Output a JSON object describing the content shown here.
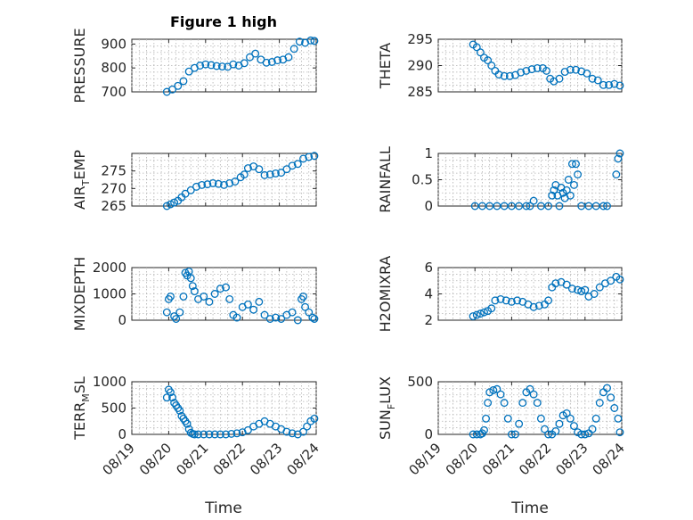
{
  "figure": {
    "title": "Figure 1 high",
    "marker_color": "#0072BD",
    "x_tick_labels": [
      "08/19",
      "08/20",
      "08/21",
      "08/22",
      "08/23",
      "08/24"
    ],
    "xlabel": "Time"
  },
  "chart_data": [
    {
      "type": "scatter",
      "ylabel": "PRESSURE",
      "title": "Figure 1 high",
      "xlim": [
        0,
        5
      ],
      "ylim": [
        700,
        920
      ],
      "yticks": [
        700,
        800,
        900
      ],
      "x": [
        0.95,
        1.1,
        1.25,
        1.4,
        1.55,
        1.7,
        1.85,
        2.0,
        2.15,
        2.3,
        2.45,
        2.6,
        2.75,
        2.9,
        3.05,
        3.2,
        3.35,
        3.5,
        3.65,
        3.8,
        3.95,
        4.1,
        4.25,
        4.4,
        4.55,
        4.7,
        4.85,
        4.95
      ],
      "y": [
        700,
        710,
        725,
        745,
        785,
        800,
        810,
        815,
        812,
        808,
        806,
        805,
        815,
        810,
        820,
        845,
        860,
        835,
        822,
        825,
        832,
        835,
        845,
        880,
        910,
        905,
        915,
        913
      ]
    },
    {
      "type": "scatter",
      "ylabel": "THETA",
      "xlim": [
        0,
        5
      ],
      "ylim": [
        285,
        295
      ],
      "yticks": [
        285,
        290,
        295
      ],
      "x": [
        0.95,
        1.05,
        1.15,
        1.25,
        1.35,
        1.45,
        1.55,
        1.65,
        1.8,
        1.95,
        2.1,
        2.25,
        2.4,
        2.55,
        2.7,
        2.85,
        2.95,
        3.05,
        3.15,
        3.3,
        3.45,
        3.6,
        3.75,
        3.9,
        4.05,
        4.2,
        4.35,
        4.5,
        4.65,
        4.8,
        4.95
      ],
      "y": [
        294,
        293.5,
        292.5,
        291.5,
        291,
        290,
        289,
        288.3,
        288,
        288,
        288.2,
        288.7,
        289,
        289.3,
        289.5,
        289.5,
        289,
        287.5,
        287,
        287.5,
        288.8,
        289.2,
        289.2,
        288.9,
        288.5,
        287.5,
        287.2,
        286.3,
        286.3,
        286.5,
        286.2
      ]
    },
    {
      "type": "scatter",
      "ylabel": "AIR_TEMP",
      "xlim": [
        0,
        5
      ],
      "ylim": [
        265,
        280
      ],
      "yticks": [
        265,
        270,
        275
      ],
      "x": [
        0.95,
        1.05,
        1.15,
        1.25,
        1.35,
        1.45,
        1.6,
        1.75,
        1.9,
        2.05,
        2.2,
        2.35,
        2.5,
        2.65,
        2.8,
        2.95,
        3.05,
        3.15,
        3.3,
        3.45,
        3.6,
        3.75,
        3.9,
        4.05,
        4.2,
        4.35,
        4.5,
        4.65,
        4.8,
        4.95
      ],
      "y": [
        265,
        265.5,
        266,
        266.5,
        267.5,
        268.5,
        269.5,
        270.5,
        271,
        271.2,
        271.5,
        271.3,
        271,
        271.5,
        272,
        273.2,
        274,
        275.8,
        276.3,
        275.5,
        273.8,
        274,
        274.3,
        274.5,
        275.5,
        276.5,
        277,
        278.5,
        279,
        279.3
      ]
    },
    {
      "type": "scatter",
      "ylabel": "RAINFALL",
      "xlim": [
        0,
        5
      ],
      "ylim": [
        0,
        1
      ],
      "yticks": [
        0,
        0.5,
        1
      ],
      "yticklabels": [
        "0",
        "0.5",
        "1"
      ],
      "x": [
        1.0,
        1.2,
        1.4,
        1.6,
        1.8,
        2.0,
        2.2,
        2.4,
        2.5,
        2.6,
        2.8,
        3.0,
        3.1,
        3.15,
        3.2,
        3.25,
        3.3,
        3.35,
        3.4,
        3.45,
        3.5,
        3.55,
        3.6,
        3.65,
        3.7,
        3.75,
        3.8,
        3.9,
        4.1,
        4.3,
        4.5,
        4.6,
        4.85,
        4.9,
        4.95
      ],
      "y": [
        0,
        0,
        0,
        0,
        0,
        0,
        0,
        0,
        0,
        0.1,
        0,
        0,
        0.2,
        0.3,
        0.4,
        0.2,
        0,
        0.35,
        0.25,
        0.15,
        0.3,
        0.5,
        0.2,
        0.8,
        0.4,
        0.8,
        0.6,
        0,
        0,
        0,
        0,
        0,
        0.6,
        0.9,
        1.0
      ]
    },
    {
      "type": "scatter",
      "ylabel": "MIXDEPTH",
      "xlim": [
        0,
        5
      ],
      "ylim": [
        0,
        2000
      ],
      "yticks": [
        0,
        1000,
        2000
      ],
      "x": [
        0.95,
        1.0,
        1.05,
        1.15,
        1.2,
        1.3,
        1.4,
        1.45,
        1.5,
        1.55,
        1.6,
        1.65,
        1.7,
        1.8,
        1.95,
        2.1,
        2.25,
        2.4,
        2.55,
        2.65,
        2.75,
        2.85,
        3.0,
        3.15,
        3.3,
        3.45,
        3.6,
        3.75,
        3.9,
        4.05,
        4.2,
        4.35,
        4.5,
        4.6,
        4.65,
        4.7,
        4.8,
        4.9,
        4.95
      ],
      "y": [
        300,
        800,
        900,
        150,
        50,
        300,
        900,
        1800,
        1700,
        1850,
        1600,
        1300,
        1100,
        800,
        900,
        700,
        1000,
        1200,
        1250,
        800,
        200,
        100,
        500,
        600,
        400,
        700,
        200,
        50,
        100,
        50,
        200,
        300,
        0,
        800,
        900,
        500,
        300,
        100,
        50
      ]
    },
    {
      "type": "scatter",
      "ylabel": "H2OMIXRA",
      "xlim": [
        0,
        5
      ],
      "ylim": [
        2,
        6
      ],
      "yticks": [
        2,
        4,
        6
      ],
      "x": [
        0.95,
        1.05,
        1.15,
        1.25,
        1.35,
        1.45,
        1.55,
        1.7,
        1.85,
        2.0,
        2.15,
        2.3,
        2.45,
        2.6,
        2.75,
        2.9,
        3.0,
        3.1,
        3.2,
        3.35,
        3.5,
        3.65,
        3.8,
        3.9,
        4.0,
        4.1,
        4.25,
        4.4,
        4.55,
        4.7,
        4.85,
        4.95
      ],
      "y": [
        2.3,
        2.4,
        2.5,
        2.6,
        2.7,
        2.9,
        3.5,
        3.6,
        3.5,
        3.4,
        3.5,
        3.4,
        3.2,
        3.0,
        3.1,
        3.2,
        3.5,
        4.5,
        4.8,
        4.9,
        4.7,
        4.4,
        4.3,
        4.2,
        4.3,
        3.8,
        4.0,
        4.5,
        4.8,
        5.0,
        5.3,
        5.1
      ]
    },
    {
      "type": "scatter",
      "ylabel": "TERR_MSL",
      "xlim": [
        0,
        5
      ],
      "ylim": [
        0,
        1000
      ],
      "yticks": [
        0,
        500,
        1000
      ],
      "x": [
        0.95,
        1.0,
        1.05,
        1.1,
        1.15,
        1.2,
        1.25,
        1.3,
        1.35,
        1.4,
        1.45,
        1.5,
        1.55,
        1.6,
        1.65,
        1.7,
        1.8,
        1.95,
        2.1,
        2.25,
        2.4,
        2.55,
        2.7,
        2.85,
        3.0,
        3.15,
        3.3,
        3.45,
        3.6,
        3.75,
        3.9,
        4.05,
        4.2,
        4.35,
        4.5,
        4.65,
        4.75,
        4.85,
        4.95
      ],
      "y": [
        700,
        850,
        800,
        700,
        600,
        550,
        500,
        450,
        350,
        300,
        250,
        200,
        100,
        30,
        10,
        0,
        0,
        0,
        0,
        0,
        0,
        0,
        10,
        20,
        40,
        80,
        150,
        200,
        250,
        200,
        150,
        100,
        50,
        20,
        0,
        50,
        150,
        250,
        300
      ]
    },
    {
      "type": "scatter",
      "ylabel": "SUN_FLUX",
      "xlim": [
        0,
        5
      ],
      "ylim": [
        0,
        500
      ],
      "yticks": [
        0,
        500
      ],
      "x": [
        0.95,
        1.05,
        1.15,
        1.2,
        1.25,
        1.3,
        1.35,
        1.4,
        1.5,
        1.6,
        1.7,
        1.8,
        1.9,
        2.0,
        2.1,
        2.2,
        2.3,
        2.4,
        2.5,
        2.6,
        2.7,
        2.8,
        2.9,
        3.0,
        3.1,
        3.2,
        3.3,
        3.4,
        3.5,
        3.6,
        3.7,
        3.8,
        3.9,
        4.0,
        4.1,
        4.2,
        4.3,
        4.4,
        4.5,
        4.6,
        4.7,
        4.8,
        4.9,
        4.95
      ],
      "y": [
        0,
        0,
        0,
        10,
        40,
        150,
        300,
        400,
        420,
        430,
        380,
        300,
        150,
        0,
        0,
        100,
        300,
        400,
        430,
        380,
        300,
        150,
        50,
        0,
        0,
        30,
        100,
        180,
        200,
        150,
        80,
        20,
        0,
        0,
        10,
        50,
        150,
        300,
        400,
        440,
        350,
        250,
        150,
        20
      ]
    }
  ]
}
